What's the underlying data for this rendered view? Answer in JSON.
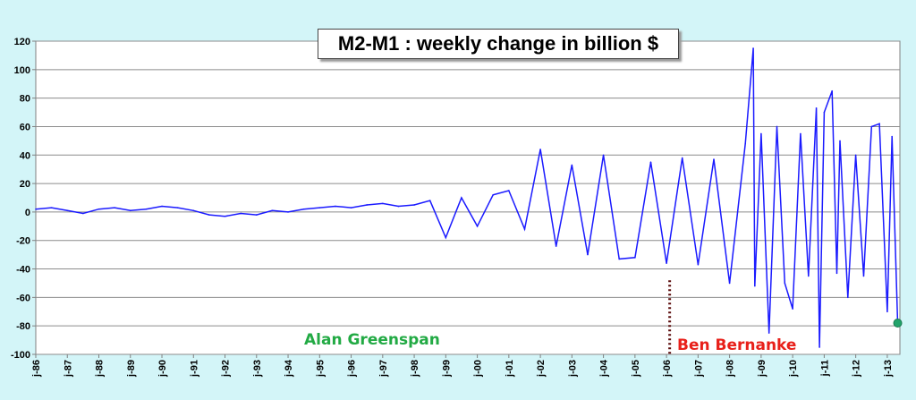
{
  "chart_data": {
    "type": "line",
    "title": "M2-M1 : weekly change in billion $",
    "ylim": [
      -100,
      120
    ],
    "yticks": [
      "120",
      "100",
      "80",
      "60",
      "40",
      "20",
      "0",
      "-20",
      "-40",
      "-60",
      "-80",
      "-100"
    ],
    "xticks": [
      "j-86",
      "j-87",
      "j-88",
      "j-89",
      "j-90",
      "j-91",
      "j-92",
      "j-93",
      "j-94",
      "j-95",
      "j-96",
      "j-97",
      "j-98",
      "j-99",
      "j-00",
      "j-01",
      "j-02",
      "j-03",
      "j-04",
      "j-05",
      "j-06",
      "j-07",
      "j-08",
      "j-09",
      "j-10",
      "j-11",
      "j-12",
      "j-13"
    ],
    "xlim": [
      1986.0,
      2013.4
    ],
    "grid": true,
    "colors": {
      "line": "#1a1aff",
      "marker": "#22a36a",
      "divider": "#5a0a0a",
      "greenspan": "#22aa44",
      "bernanke": "#e8201a"
    },
    "series": [
      {
        "name": "",
        "x": [
          1986.0,
          1986.5,
          1987.0,
          1987.5,
          1988.0,
          1988.5,
          1989.0,
          1989.5,
          1990.0,
          1990.5,
          1991.0,
          1991.5,
          1992.0,
          1992.5,
          1993.0,
          1993.5,
          1994.0,
          1994.5,
          1995.0,
          1995.5,
          1996.0,
          1996.5,
          1997.0,
          1997.5,
          1998.0,
          1998.5,
          1999.0,
          1999.5,
          2000.0,
          2000.5,
          2001.0,
          2001.5,
          2002.0,
          2002.5,
          2003.0,
          2003.5,
          2004.0,
          2004.5,
          2005.0,
          2005.5,
          2006.0,
          2006.5,
          2007.0,
          2007.5,
          2008.0,
          2008.5,
          2008.75,
          2008.8,
          2009.0,
          2009.25,
          2009.5,
          2009.75,
          2010.0,
          2010.25,
          2010.5,
          2010.75,
          2010.85,
          2011.0,
          2011.25,
          2011.4,
          2011.5,
          2011.75,
          2012.0,
          2012.25,
          2012.5,
          2012.75,
          2013.0,
          2013.15,
          2013.25,
          2013.33
        ],
        "values": [
          2,
          3,
          1,
          -1,
          2,
          3,
          1,
          2,
          4,
          3,
          1,
          -2,
          -3,
          -1,
          -2,
          1,
          0,
          2,
          3,
          4,
          3,
          5,
          6,
          4,
          5,
          8,
          -18,
          10,
          -10,
          12,
          15,
          -12,
          44,
          -24,
          33,
          -30,
          40,
          -33,
          -32,
          35,
          -36,
          38,
          -37,
          37,
          -50,
          48,
          115,
          -52,
          55,
          -85,
          60,
          -50,
          -68,
          55,
          -45,
          73,
          -95,
          70,
          85,
          -43,
          50,
          -60,
          40,
          -45,
          60,
          62,
          -70,
          53,
          -20,
          -78
        ]
      }
    ],
    "annotations": [
      {
        "text": "Alan Greenspan"
      },
      {
        "text": "Ben  Bernanke"
      }
    ],
    "last_point": {
      "x": 2013.33,
      "value": -78
    }
  }
}
